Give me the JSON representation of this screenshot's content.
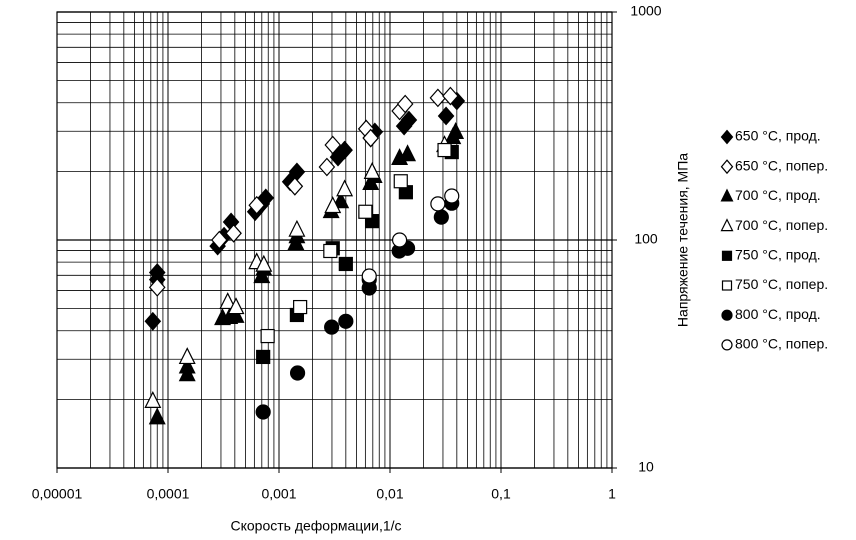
{
  "chart_data": {
    "type": "scatter",
    "x_label": "Скорость деформации,1/с",
    "y_label": "Напряжение течения, МПа",
    "xlog": true,
    "ylog": true,
    "grid": true,
    "legend": "right",
    "xlim": [
      1e-05,
      1
    ],
    "ylim": [
      10,
      1000
    ],
    "xticks": [
      {
        "value": 1e-05,
        "label": "0,00001"
      },
      {
        "value": 0.0001,
        "label": "0,0001"
      },
      {
        "value": 0.001,
        "label": "0,001"
      },
      {
        "value": 0.01,
        "label": "0,01"
      },
      {
        "value": 0.1,
        "label": "0,1"
      },
      1
    ],
    "yticks": [
      10,
      100,
      1000
    ],
    "series": [
      {
        "name": "650 °C, прод.",
        "color": "#000000",
        "marker": "diamond",
        "filled": true,
        "x": [
          7.3e-05,
          8e-05,
          8e-05,
          0.00028,
          0.00032,
          0.00037,
          0.00061,
          0.0007,
          0.00076,
          0.00126,
          0.00145,
          0.0034,
          0.0039,
          0.0067,
          0.0073,
          0.0134,
          0.0148,
          0.032,
          0.04
        ],
        "values": [
          44,
          72,
          67,
          94,
          104,
          120,
          133,
          144,
          153,
          180,
          199,
          231,
          248,
          280,
          298,
          316,
          336,
          350,
          407
        ]
      },
      {
        "name": "650 °C, попер.",
        "color": "#000000",
        "marker": "diamond",
        "filled": false,
        "x": [
          8e-05,
          0.00029,
          0.00039,
          0.00063,
          0.00139,
          0.0027,
          0.00305,
          0.0061,
          0.0067,
          0.0122,
          0.0137,
          0.027,
          0.035
        ],
        "values": [
          62,
          100,
          107,
          142,
          172,
          209,
          261,
          307,
          280,
          368,
          395,
          420,
          428
        ]
      },
      {
        "name": "700 °C, прод.",
        "color": "#000000",
        "marker": "triangle",
        "filled": true,
        "x": [
          8e-05,
          0.000149,
          0.000149,
          0.00031,
          0.00036,
          0.00041,
          0.0007,
          0.00073,
          0.00142,
          0.00145,
          0.00295,
          0.0036,
          0.0067,
          0.0072,
          0.0122,
          0.0144,
          0.0368,
          0.039
        ],
        "values": [
          16.7,
          25.8,
          27.9,
          45.5,
          46,
          46.5,
          69.5,
          75,
          97,
          104,
          134,
          148,
          178,
          191,
          229,
          238,
          283,
          298
        ]
      },
      {
        "name": "700 °C, попер.",
        "color": "#000000",
        "marker": "triangle",
        "filled": false,
        "x": [
          7.3e-05,
          0.000149,
          0.000345,
          0.00041,
          0.00063,
          0.00073,
          0.00145,
          0.00305,
          0.0039,
          0.0069,
          0.031
        ],
        "values": [
          19.7,
          30.7,
          53.5,
          50.8,
          80,
          78,
          111,
          141,
          167,
          199,
          261
        ]
      },
      {
        "name": "750 °C, прод.",
        "color": "#000000",
        "marker": "square",
        "filled": true,
        "x": [
          0.00072,
          0.00145,
          0.00305,
          0.004,
          0.0069,
          0.0139,
          0.036
        ],
        "values": [
          30.7,
          46.9,
          92,
          78.5,
          121,
          162,
          243
        ]
      },
      {
        "name": "750 °C, попер.",
        "color": "#000000",
        "marker": "square",
        "filled": false,
        "x": [
          0.00079,
          0.00155,
          0.0029,
          0.006,
          0.0125,
          0.031
        ],
        "values": [
          37.9,
          50.8,
          89.5,
          133,
          181,
          248
        ]
      },
      {
        "name": "800 °C, прод.",
        "color": "#000000",
        "marker": "circle",
        "filled": true,
        "x": [
          0.00072,
          0.00147,
          0.00298,
          0.004,
          0.0065,
          0.0065,
          0.0121,
          0.0144,
          0.029,
          0.036
        ],
        "values": [
          17.6,
          26.1,
          41.5,
          44,
          61.6,
          67,
          89.5,
          92,
          126,
          145
        ]
      },
      {
        "name": "800 °C, попер.",
        "color": "#000000",
        "marker": "circle",
        "filled": false,
        "x": [
          0.0065,
          0.0122,
          0.027,
          0.036
        ],
        "values": [
          69.5,
          100,
          144,
          156
        ]
      }
    ]
  }
}
